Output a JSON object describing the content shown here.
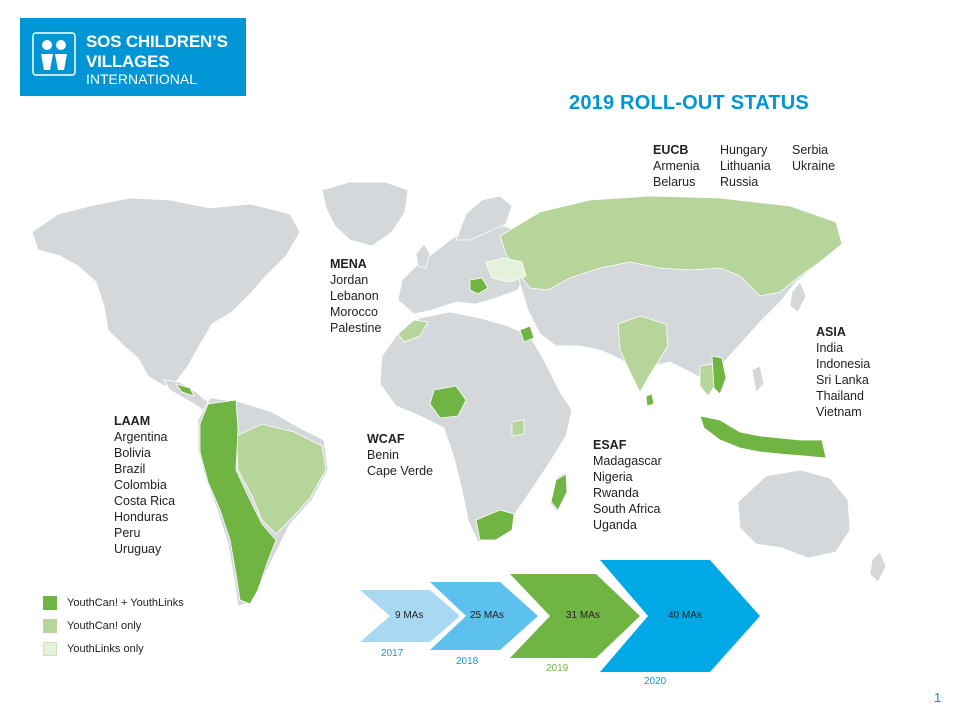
{
  "logo": {
    "line1": "SOS CHILDREN’S",
    "line2": "VILLAGES",
    "line3": "INTERNATIONAL"
  },
  "title": "2019 ROLL-OUT STATUS",
  "colors": {
    "brand_blue": "#0096d6",
    "dark_green": "#70b443",
    "light_green": "#b5d59b",
    "pale_green": "#e6f1dc",
    "land_gray": "#d4d8db"
  },
  "regions": {
    "eucb": {
      "heading": "EUCB",
      "col1": [
        "Armenia",
        "Belarus"
      ],
      "col2": [
        "Hungary",
        "Lithuania",
        "Russia"
      ],
      "col3": [
        "Serbia",
        "Ukraine"
      ]
    },
    "mena": {
      "heading": "MENA",
      "countries": [
        "Jordan",
        "Lebanon",
        "Morocco",
        "Palestine"
      ]
    },
    "asia": {
      "heading": "ASIA",
      "countries": [
        "India",
        "Indonesia",
        "Sri Lanka",
        "Thailand",
        "Vietnam"
      ]
    },
    "laam": {
      "heading": "LAAM",
      "countries": [
        "Argentina",
        "Bolivia",
        "Brazil",
        "Colombia",
        "Costa Rica",
        "Honduras",
        "Peru",
        "Uruguay"
      ]
    },
    "wcaf": {
      "heading": "WCAF",
      "countries": [
        "Benin",
        "Cape Verde"
      ]
    },
    "esaf": {
      "heading": "ESAF",
      "countries": [
        "Madagascar",
        "Nigeria",
        "Rwanda",
        "South Africa",
        "Uganda"
      ]
    }
  },
  "legend": [
    {
      "label": "YouthCan! + YouthLinks",
      "color": "#70b443"
    },
    {
      "label": "YouthCan! only",
      "color": "#b5d59b"
    },
    {
      "label": "YouthLinks only",
      "color": "#e6f1dc"
    }
  ],
  "timeline": [
    {
      "label": "9 MAs",
      "year": "2017",
      "color": "#a9d8f2",
      "year_color": "#1f97d4"
    },
    {
      "label": "25 MAs",
      "year": "2018",
      "color": "#5cc1ec",
      "year_color": "#1f97d4"
    },
    {
      "label": "31 MAs",
      "year": "2019",
      "color": "#70b443",
      "year_color": "#70b443"
    },
    {
      "label": "40 MAs",
      "year": "2020",
      "color": "#00a9e6",
      "year_color": "#1f97d4"
    }
  ],
  "page_number": "1"
}
